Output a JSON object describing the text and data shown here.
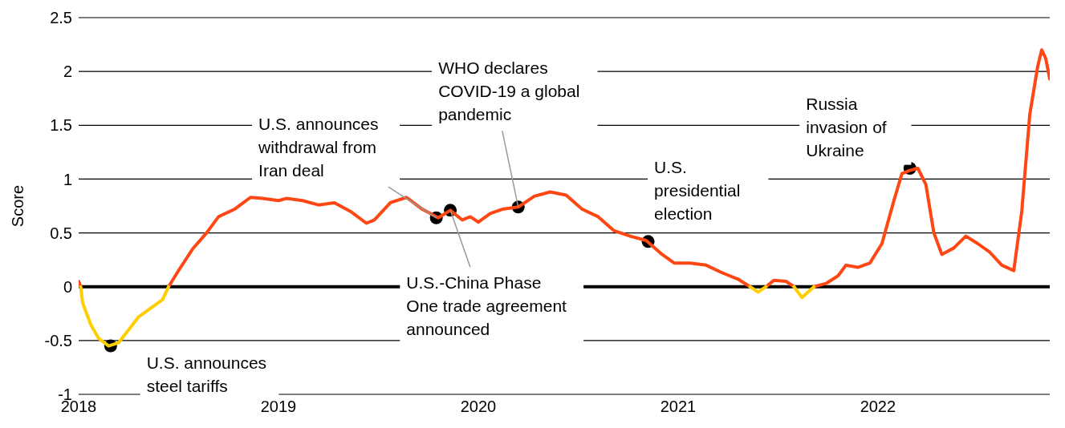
{
  "chart_data": {
    "type": "line",
    "ylabel": "Score",
    "xlim": [
      2018,
      2022.86
    ],
    "xticks": [
      2018,
      2019,
      2020,
      2021,
      2022
    ],
    "ylim": [
      -1,
      2.5
    ],
    "yticks": [
      -1,
      -0.5,
      0,
      0.5,
      1,
      1.5,
      2,
      2.5
    ],
    "grid": "y",
    "legend": false,
    "marker": "none",
    "line_style": "solid",
    "ref_lines": [
      {
        "axis": "y",
        "value": 0,
        "color": "#000000"
      }
    ],
    "series": [
      {
        "type": "line",
        "color": "#ff4713",
        "x": [
          2018.0,
          2018.01,
          2018.02,
          2018.45,
          2018.5,
          2018.57,
          2018.64,
          2018.7,
          2018.78,
          2018.86,
          2018.92,
          2019.0,
          2019.04,
          2019.12,
          2019.2,
          2019.28,
          2019.36,
          2019.44,
          2019.48,
          2019.56,
          2019.64,
          2019.72,
          2019.8,
          2019.86,
          2019.92,
          2019.96,
          2020.0,
          2020.06,
          2020.12,
          2020.2,
          2020.28,
          2020.36,
          2020.44,
          2020.52,
          2020.6,
          2020.68,
          2020.76,
          2020.84,
          2020.92,
          2020.98,
          2021.06,
          2021.14,
          2021.22,
          2021.3,
          2021.36,
          2021.4,
          2021.44,
          2021.48,
          2021.54,
          2021.58,
          2021.62,
          2021.68,
          2021.74,
          2021.8,
          2021.84,
          2021.9,
          2021.96,
          2022.02,
          2022.08,
          2022.12,
          2022.16,
          2022.2,
          2022.24,
          2022.28,
          2022.32,
          2022.38,
          2022.44,
          2022.5,
          2022.56,
          2022.62,
          2022.68,
          2022.72,
          2022.76,
          2022.8,
          2022.82,
          2022.84,
          2022.86
        ],
        "values": [
          0.05,
          0,
          null,
          0,
          0.15,
          0.35,
          0.5,
          0.65,
          0.72,
          0.83,
          0.82,
          0.8,
          0.82,
          0.8,
          0.76,
          0.78,
          0.7,
          0.59,
          0.62,
          0.78,
          0.83,
          0.72,
          0.64,
          0.71,
          0.62,
          0.65,
          0.6,
          0.68,
          0.72,
          0.74,
          0.84,
          0.88,
          0.85,
          0.72,
          0.65,
          0.52,
          0.47,
          0.43,
          0.3,
          0.22,
          0.22,
          0.2,
          0.13,
          0.07,
          0,
          null,
          0,
          0.06,
          0.05,
          0,
          null,
          0,
          0.03,
          0.1,
          0.2,
          0.18,
          0.22,
          0.4,
          0.8,
          1.05,
          1.08,
          1.1,
          0.95,
          0.5,
          0.3,
          0.36,
          0.47,
          0.4,
          0.32,
          0.2,
          0.15,
          0.7,
          1.6,
          2.05,
          2.2,
          2.12,
          1.93
        ]
      },
      {
        "type": "line",
        "color": "#ffce00",
        "x": [
          2018.01,
          2018.02,
          2018.06,
          2018.1,
          2018.15,
          2018.2,
          2018.25,
          2018.3,
          2018.36,
          2018.42,
          2018.45,
          2018.5,
          2021.36,
          2021.4,
          2021.44,
          2021.5,
          2021.58,
          2021.62,
          2021.68
        ],
        "values": [
          0,
          -0.15,
          -0.35,
          -0.48,
          -0.55,
          -0.52,
          -0.4,
          -0.28,
          -0.2,
          -0.12,
          0,
          null,
          0,
          -0.05,
          0,
          null,
          0,
          -0.1,
          0
        ]
      }
    ],
    "annotations": [
      {
        "text": "U.S. announces steel tariffs",
        "x": 2018.16,
        "y": -0.55
      },
      {
        "text": "U.S. announces withdrawal from Iran deal",
        "x": 2019.79,
        "y": 0.64
      },
      {
        "text": "U.S.-China Phase One trade agreement announced",
        "x": 2019.86,
        "y": 0.71
      },
      {
        "text": "WHO declares COVID-19 a global pandemic",
        "x": 2020.2,
        "y": 0.74
      },
      {
        "text": "U.S. presidential election",
        "x": 2020.85,
        "y": 0.42
      },
      {
        "text": "Russia invasion of Ukraine",
        "x": 2022.16,
        "y": 1.1
      }
    ]
  }
}
